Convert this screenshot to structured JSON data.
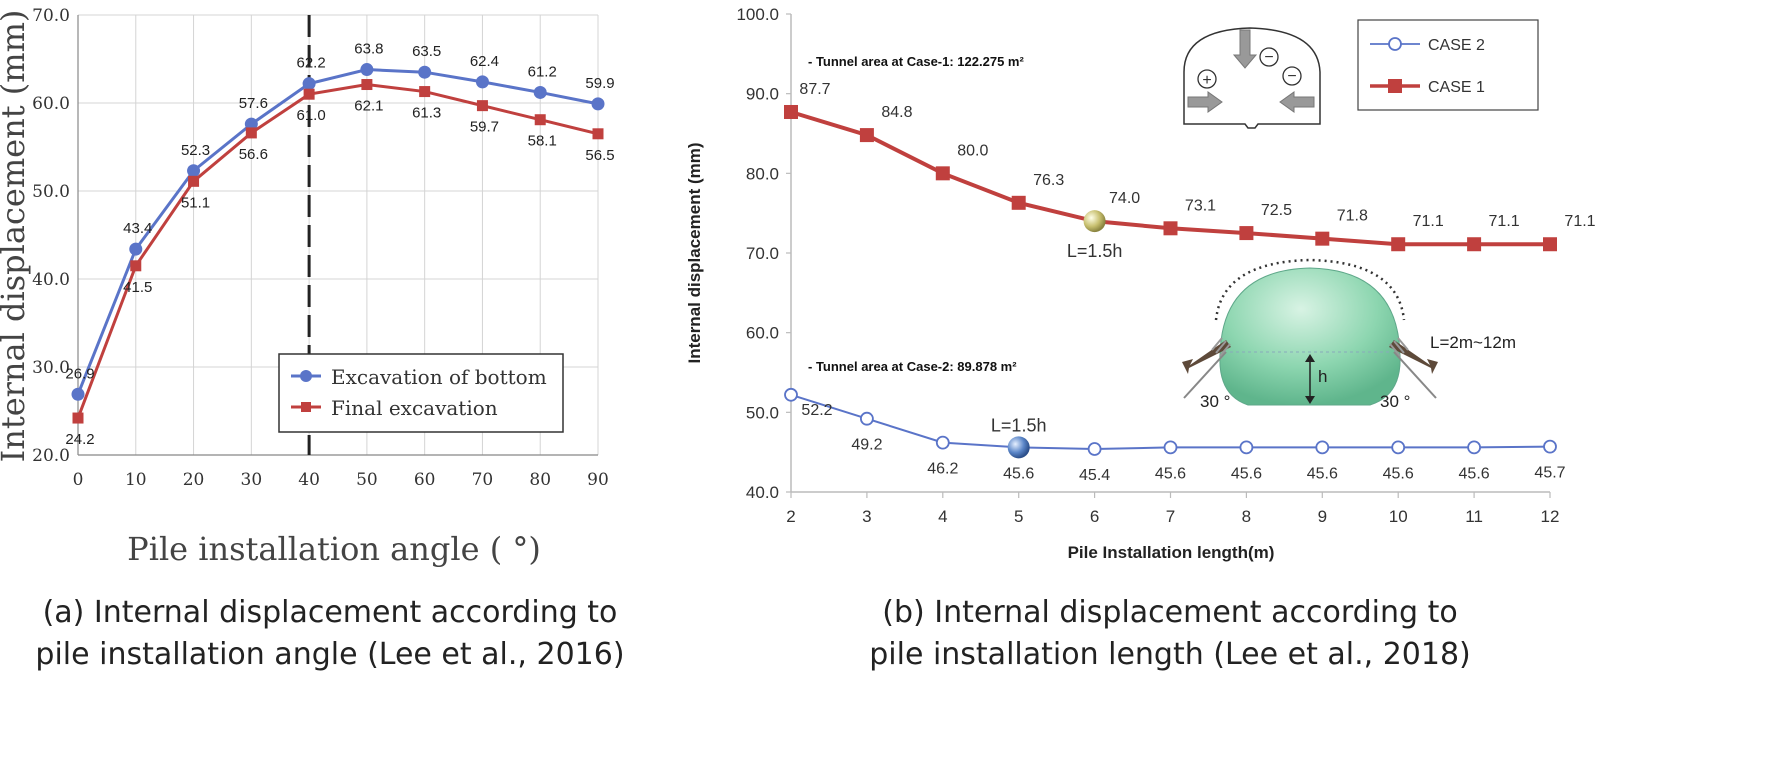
{
  "colors": {
    "case_blue": "#5a74c8",
    "case_red": "#c0403e",
    "grid": "#d4d4d4",
    "axis": "#888888"
  },
  "captions": {
    "a_line1": "(a) Internal displacement according to",
    "a_line2": "pile installation angle (Lee et al., 2016)",
    "b_line1": "(b) Internal displacement according to",
    "b_line2": "pile installation length (Lee et al., 2018)"
  },
  "chart_data": [
    {
      "type": "line",
      "xlabel": "Pile installation angle ( °)",
      "ylabel": "Internal displacement (mm)",
      "x": [
        0,
        10,
        20,
        30,
        40,
        50,
        60,
        70,
        80,
        90
      ],
      "x_tick_labels": [
        "0",
        "10",
        "20",
        "30",
        "40",
        "50",
        "60",
        "70",
        "80",
        "90"
      ],
      "xlim": [
        0,
        90
      ],
      "ylim": [
        20,
        70
      ],
      "y_tick_labels": [
        "20.0",
        "30.0",
        "40.0",
        "50.0",
        "60.0",
        "70.0"
      ],
      "grid": true,
      "legend_position": "bottom-right",
      "reference_line_x": 40,
      "series": [
        {
          "name": "Excavation of bottom",
          "color": "#5a74c8",
          "marker": "circle",
          "values": [
            26.9,
            43.4,
            52.3,
            57.6,
            62.2,
            63.8,
            63.5,
            62.4,
            61.2,
            59.9
          ],
          "labels": [
            "26.9",
            "43.4",
            "52.3",
            "57.6",
            "62.2",
            "63.8",
            "63.5",
            "62.4",
            "61.2",
            "59.9"
          ]
        },
        {
          "name": "Final excavation",
          "color": "#c0403e",
          "marker": "square",
          "values": [
            24.2,
            41.5,
            51.1,
            56.6,
            61.0,
            62.1,
            61.3,
            59.7,
            58.1,
            56.5
          ],
          "labels": [
            "24.2",
            "41.5",
            "51.1",
            "56.6",
            "61.0",
            "62.1",
            "61.3",
            "59.7",
            "58.1",
            "56.5"
          ]
        }
      ]
    },
    {
      "type": "line",
      "xlabel": "Pile Installation length(m)",
      "ylabel": "Internal displacement  (mm)",
      "x": [
        2,
        3,
        4,
        5,
        6,
        7,
        8,
        9,
        10,
        11,
        12
      ],
      "x_tick_labels": [
        "2",
        "3",
        "4",
        "5",
        "6",
        "7",
        "8",
        "9",
        "10",
        "11",
        "12"
      ],
      "xlim": [
        2,
        12
      ],
      "ylim": [
        40,
        100
      ],
      "y_tick_labels": [
        "40.0",
        "50.0",
        "60.0",
        "70.0",
        "80.0",
        "90.0",
        "100.0"
      ],
      "grid": false,
      "legend_position": "top-right",
      "series": [
        {
          "name": "CASE 2",
          "color": "#5a74c8",
          "marker": "open-circle",
          "values": [
            52.2,
            49.2,
            46.2,
            45.6,
            45.4,
            45.6,
            45.6,
            45.6,
            45.6,
            45.6,
            45.7
          ],
          "labels": [
            "52.2",
            "49.2",
            "46.2",
            "45.6",
            "45.4",
            "45.6",
            "45.6",
            "45.6",
            "45.6",
            "45.6",
            "45.7"
          ]
        },
        {
          "name": "CASE 1",
          "color": "#c0403e",
          "marker": "square",
          "values": [
            87.7,
            84.8,
            80.0,
            76.3,
            74.0,
            73.1,
            72.5,
            71.8,
            71.1,
            71.1,
            71.1
          ],
          "labels": [
            "87.7",
            "84.8",
            "80.0",
            "76.3",
            "74.0",
            "73.1",
            "72.5",
            "71.8",
            "71.1",
            "71.1",
            "71.1"
          ]
        }
      ],
      "annotations": {
        "case1_area": "- Tunnel area at Case-1: 122.275 m²",
        "case2_area": "- Tunnel area at Case-2: 89.878 m²",
        "case1_optimum": "L=1.5h",
        "case2_optimum": "L=1.5h",
        "pile_length_range": "L=2m~12m",
        "angle_left": "30 °",
        "angle_right": "30 °",
        "height_symbol": "h",
        "plus_symbol": "+",
        "minus_symbol": "−"
      }
    }
  ]
}
